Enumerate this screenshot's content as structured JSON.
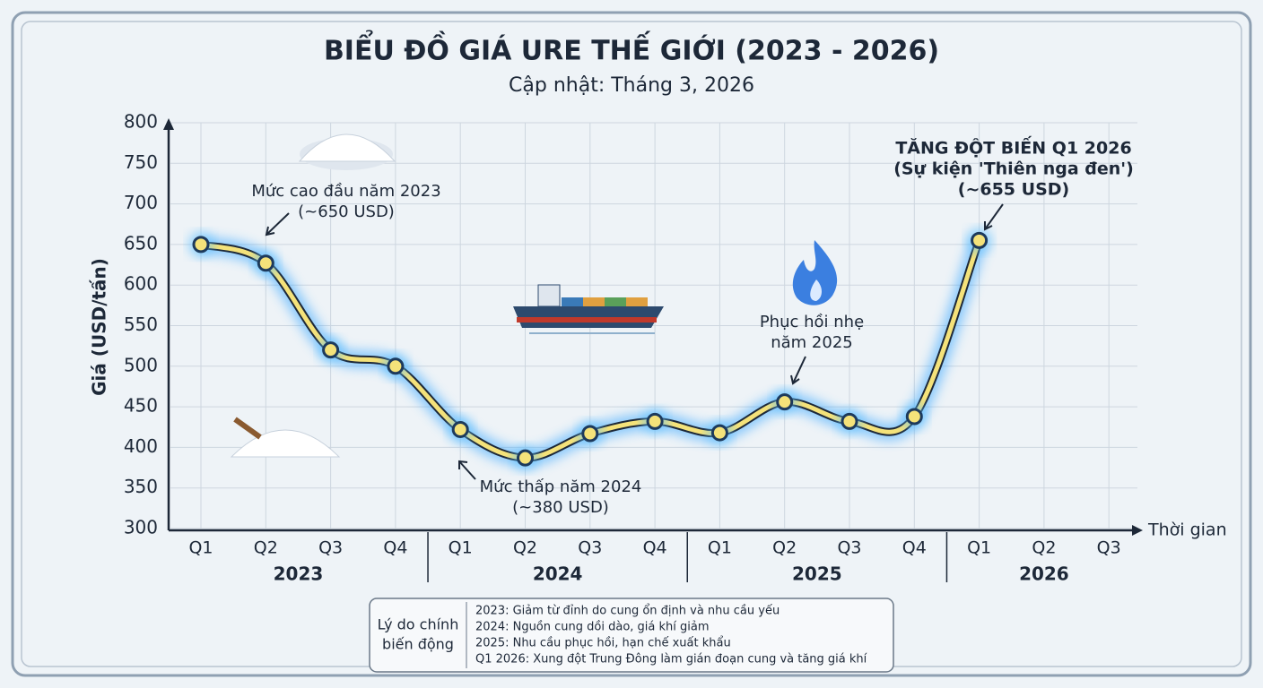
{
  "chart_data": {
    "type": "line",
    "title": "BIỂU ĐỒ GIÁ URE THẾ GIỚI (2023 - 2026)",
    "subtitle": "Cập nhật: Tháng 3, 2026",
    "y_label": "Giá (USD/tấn)",
    "x_label": "Thời gian",
    "groups": [
      {
        "name": "2023",
        "categories": [
          "Q1",
          "Q2",
          "Q3",
          "Q4"
        ]
      },
      {
        "name": "2024",
        "categories": [
          "Q1",
          "Q2",
          "Q3",
          "Q4"
        ]
      },
      {
        "name": "2025",
        "categories": [
          "Q1",
          "Q2",
          "Q3",
          "Q4"
        ]
      },
      {
        "name": "2026",
        "categories": [
          "Q1",
          "Q2",
          "Q3"
        ]
      }
    ],
    "values": [
      650,
      627,
      520,
      500,
      422,
      387,
      417,
      432,
      418,
      456,
      432,
      438,
      655,
      null,
      null
    ],
    "color": "#f4e27a",
    "ylim": [
      300,
      800
    ],
    "yticks": [
      300,
      350,
      400,
      450,
      500,
      550,
      600,
      650,
      700,
      750,
      800
    ],
    "grid": true,
    "annotations": [
      {
        "lines": [
          "Mức cao đầu năm 2023",
          "(~650 USD)"
        ]
      },
      {
        "lines": [
          "Mức thấp năm 2024",
          "(~380 USD)"
        ]
      },
      {
        "lines": [
          "Phục hồi nhẹ",
          "năm 2025"
        ]
      },
      {
        "lines": [
          "TĂNG ĐỘT BIẾN Q1 2026",
          "(Sự kiện 'Thiên nga đen')",
          "(~655 USD)"
        ]
      }
    ],
    "reasons": {
      "title": [
        "Lý do chính",
        "biến động"
      ],
      "items": [
        "2023: Giảm từ đỉnh do cung ổn định và nhu cầu yếu",
        "2024: Nguồn cung dồi dào, giá khí giảm",
        "2025: Nhu cầu phục hồi, hạn chế xuất khẩu",
        "Q1 2026: Xung đột Trung Đông làm gián đoạn cung và tăng giá khí"
      ]
    }
  }
}
